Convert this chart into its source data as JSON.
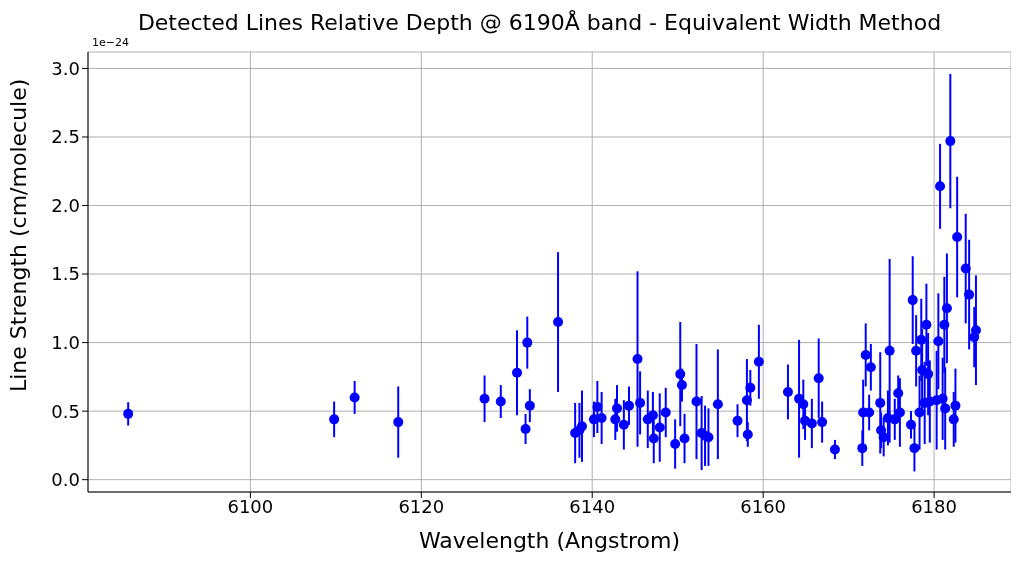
{
  "chart_data": {
    "type": "scatter",
    "title": "Detected Lines Relative Depth @ 6190Å band - Equivalent Width Method",
    "xlabel": "Wavelength (Angstrom)",
    "ylabel": "Line Strength (cm/molecule)",
    "annotations": [
      "1e−24"
    ],
    "color": "#0000ff",
    "marker": "circle",
    "grid": true,
    "x": [
      6085.7,
      6109.8,
      6112.2,
      6117.3,
      6127.4,
      6129.3,
      6131.2,
      6132.2,
      6132.4,
      6132.7,
      6136.0,
      6138.0,
      6138.5,
      6138.8,
      6140.2,
      6140.6,
      6141.1,
      6142.7,
      6142.9,
      6143.7,
      6144.3,
      6145.3,
      6145.6,
      6146.5,
      6147.1,
      6147.2,
      6147.9,
      6148.6,
      6149.7,
      6150.3,
      6150.5,
      6150.8,
      6152.2,
      6152.8,
      6153.2,
      6153.6,
      6154.7,
      6157.0,
      6158.1,
      6158.2,
      6158.5,
      6159.5,
      6162.9,
      6164.2,
      6164.7,
      6164.9,
      6165.7,
      6166.5,
      6166.9,
      6168.4,
      6171.6,
      6171.7,
      6172.0,
      6172.4,
      6172.6,
      6173.7,
      6173.8,
      6174.1,
      6174.6,
      6174.8,
      6175.4,
      6175.8,
      6176.0,
      6177.3,
      6177.5,
      6177.7,
      6177.9,
      6178.3,
      6178.5,
      6178.6,
      6178.9,
      6179.1,
      6179.3,
      6179.5,
      6180.3,
      6181.0,
      6180.5,
      6180.7,
      6181.2,
      6181.3,
      6181.5,
      6181.9,
      6182.3,
      6182.5,
      6182.7,
      6183.7,
      6184.1,
      6184.7,
      6184.9
    ],
    "values": [
      0.48,
      0.44,
      0.6,
      0.42,
      0.59,
      0.57,
      0.78,
      0.37,
      1.0,
      0.54,
      1.15,
      0.34,
      0.36,
      0.39,
      0.44,
      0.53,
      0.45,
      0.44,
      0.52,
      0.4,
      0.54,
      0.88,
      0.56,
      0.44,
      0.47,
      0.3,
      0.38,
      0.49,
      0.26,
      0.77,
      0.69,
      0.3,
      0.57,
      0.34,
      0.32,
      0.31,
      0.55,
      0.43,
      0.58,
      0.33,
      0.67,
      0.86,
      0.64,
      0.59,
      0.55,
      0.43,
      0.41,
      0.74,
      0.42,
      0.22,
      0.23,
      0.49,
      0.91,
      0.49,
      0.82,
      0.56,
      0.36,
      0.31,
      0.45,
      0.94,
      0.44,
      0.63,
      0.49,
      0.4,
      1.31,
      0.23,
      0.94,
      0.49,
      1.02,
      0.8,
      0.56,
      1.13,
      0.77,
      0.57,
      0.58,
      0.59,
      1.01,
      2.14,
      1.13,
      0.52,
      1.25,
      2.47,
      0.44,
      0.54,
      1.77,
      1.54,
      1.35,
      1.04,
      1.09
    ],
    "errors": [
      0.085,
      0.13,
      0.12,
      0.26,
      0.17,
      0.12,
      0.31,
      0.11,
      0.19,
      0.12,
      0.51,
      0.22,
      0.2,
      0.26,
      0.13,
      0.19,
      0.19,
      0.15,
      0.17,
      0.18,
      0.14,
      0.64,
      0.23,
      0.21,
      0.17,
      0.18,
      0.25,
      0.18,
      0.18,
      0.38,
      0.12,
      0.18,
      0.42,
      0.27,
      0.22,
      0.21,
      0.4,
      0.12,
      0.3,
      0.09,
      0.13,
      0.27,
      0.2,
      0.43,
      0.18,
      0.14,
      0.18,
      0.29,
      0.15,
      0.07,
      0.13,
      0.24,
      0.23,
      0.13,
      0.17,
      0.37,
      0.13,
      0.14,
      0.2,
      0.67,
      0.15,
      0.13,
      0.25,
      0.1,
      0.32,
      0.17,
      0.26,
      0.27,
      0.3,
      0.3,
      0.3,
      0.3,
      0.3,
      0.3,
      0.36,
      0.3,
      0.35,
      0.31,
      0.35,
      0.3,
      0.4,
      0.49,
      0.2,
      0.27,
      0.44,
      0.4,
      0.4,
      0.22,
      0.4
    ],
    "xlim": [
      6081,
      6189
    ],
    "xticks": [
      6100,
      6120,
      6140,
      6160,
      6180
    ],
    "ylim": [
      -0.09,
      3.12
    ],
    "yticks": [
      {
        "value": 0,
        "label": "0.0"
      },
      {
        "value": 0.5,
        "label": "0.5"
      },
      {
        "value": 1,
        "label": "1.0"
      },
      {
        "value": 1.5,
        "label": "1.5"
      },
      {
        "value": 2,
        "label": "2.0"
      },
      {
        "value": 2.5,
        "label": "2.5"
      },
      {
        "value": 3,
        "label": "3.0"
      }
    ]
  }
}
